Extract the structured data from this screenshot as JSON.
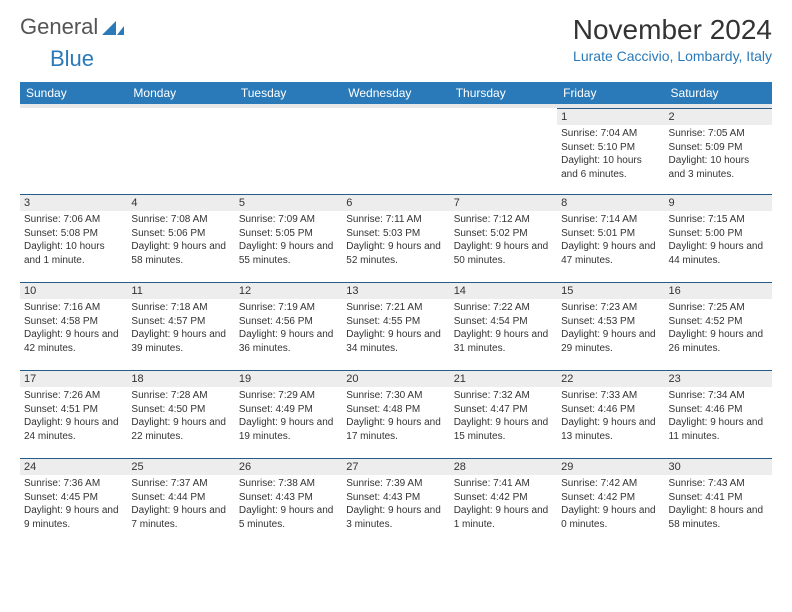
{
  "logo": {
    "text1": "General",
    "text2": "Blue"
  },
  "title": "November 2024",
  "location": "Lurate Caccivio, Lombardy, Italy",
  "header_bg": "#2a7ab9",
  "daynum_bg": "#ededed",
  "day_border": "#2a5a8a",
  "text_color": "#333333",
  "accent_color": "#2a7ab9",
  "days_of_week": [
    "Sunday",
    "Monday",
    "Tuesday",
    "Wednesday",
    "Thursday",
    "Friday",
    "Saturday"
  ],
  "weeks": [
    [
      null,
      null,
      null,
      null,
      null,
      {
        "n": "1",
        "sunrise": "Sunrise: 7:04 AM",
        "sunset": "Sunset: 5:10 PM",
        "daylight": "Daylight: 10 hours and 6 minutes."
      },
      {
        "n": "2",
        "sunrise": "Sunrise: 7:05 AM",
        "sunset": "Sunset: 5:09 PM",
        "daylight": "Daylight: 10 hours and 3 minutes."
      }
    ],
    [
      {
        "n": "3",
        "sunrise": "Sunrise: 7:06 AM",
        "sunset": "Sunset: 5:08 PM",
        "daylight": "Daylight: 10 hours and 1 minute."
      },
      {
        "n": "4",
        "sunrise": "Sunrise: 7:08 AM",
        "sunset": "Sunset: 5:06 PM",
        "daylight": "Daylight: 9 hours and 58 minutes."
      },
      {
        "n": "5",
        "sunrise": "Sunrise: 7:09 AM",
        "sunset": "Sunset: 5:05 PM",
        "daylight": "Daylight: 9 hours and 55 minutes."
      },
      {
        "n": "6",
        "sunrise": "Sunrise: 7:11 AM",
        "sunset": "Sunset: 5:03 PM",
        "daylight": "Daylight: 9 hours and 52 minutes."
      },
      {
        "n": "7",
        "sunrise": "Sunrise: 7:12 AM",
        "sunset": "Sunset: 5:02 PM",
        "daylight": "Daylight: 9 hours and 50 minutes."
      },
      {
        "n": "8",
        "sunrise": "Sunrise: 7:14 AM",
        "sunset": "Sunset: 5:01 PM",
        "daylight": "Daylight: 9 hours and 47 minutes."
      },
      {
        "n": "9",
        "sunrise": "Sunrise: 7:15 AM",
        "sunset": "Sunset: 5:00 PM",
        "daylight": "Daylight: 9 hours and 44 minutes."
      }
    ],
    [
      {
        "n": "10",
        "sunrise": "Sunrise: 7:16 AM",
        "sunset": "Sunset: 4:58 PM",
        "daylight": "Daylight: 9 hours and 42 minutes."
      },
      {
        "n": "11",
        "sunrise": "Sunrise: 7:18 AM",
        "sunset": "Sunset: 4:57 PM",
        "daylight": "Daylight: 9 hours and 39 minutes."
      },
      {
        "n": "12",
        "sunrise": "Sunrise: 7:19 AM",
        "sunset": "Sunset: 4:56 PM",
        "daylight": "Daylight: 9 hours and 36 minutes."
      },
      {
        "n": "13",
        "sunrise": "Sunrise: 7:21 AM",
        "sunset": "Sunset: 4:55 PM",
        "daylight": "Daylight: 9 hours and 34 minutes."
      },
      {
        "n": "14",
        "sunrise": "Sunrise: 7:22 AM",
        "sunset": "Sunset: 4:54 PM",
        "daylight": "Daylight: 9 hours and 31 minutes."
      },
      {
        "n": "15",
        "sunrise": "Sunrise: 7:23 AM",
        "sunset": "Sunset: 4:53 PM",
        "daylight": "Daylight: 9 hours and 29 minutes."
      },
      {
        "n": "16",
        "sunrise": "Sunrise: 7:25 AM",
        "sunset": "Sunset: 4:52 PM",
        "daylight": "Daylight: 9 hours and 26 minutes."
      }
    ],
    [
      {
        "n": "17",
        "sunrise": "Sunrise: 7:26 AM",
        "sunset": "Sunset: 4:51 PM",
        "daylight": "Daylight: 9 hours and 24 minutes."
      },
      {
        "n": "18",
        "sunrise": "Sunrise: 7:28 AM",
        "sunset": "Sunset: 4:50 PM",
        "daylight": "Daylight: 9 hours and 22 minutes."
      },
      {
        "n": "19",
        "sunrise": "Sunrise: 7:29 AM",
        "sunset": "Sunset: 4:49 PM",
        "daylight": "Daylight: 9 hours and 19 minutes."
      },
      {
        "n": "20",
        "sunrise": "Sunrise: 7:30 AM",
        "sunset": "Sunset: 4:48 PM",
        "daylight": "Daylight: 9 hours and 17 minutes."
      },
      {
        "n": "21",
        "sunrise": "Sunrise: 7:32 AM",
        "sunset": "Sunset: 4:47 PM",
        "daylight": "Daylight: 9 hours and 15 minutes."
      },
      {
        "n": "22",
        "sunrise": "Sunrise: 7:33 AM",
        "sunset": "Sunset: 4:46 PM",
        "daylight": "Daylight: 9 hours and 13 minutes."
      },
      {
        "n": "23",
        "sunrise": "Sunrise: 7:34 AM",
        "sunset": "Sunset: 4:46 PM",
        "daylight": "Daylight: 9 hours and 11 minutes."
      }
    ],
    [
      {
        "n": "24",
        "sunrise": "Sunrise: 7:36 AM",
        "sunset": "Sunset: 4:45 PM",
        "daylight": "Daylight: 9 hours and 9 minutes."
      },
      {
        "n": "25",
        "sunrise": "Sunrise: 7:37 AM",
        "sunset": "Sunset: 4:44 PM",
        "daylight": "Daylight: 9 hours and 7 minutes."
      },
      {
        "n": "26",
        "sunrise": "Sunrise: 7:38 AM",
        "sunset": "Sunset: 4:43 PM",
        "daylight": "Daylight: 9 hours and 5 minutes."
      },
      {
        "n": "27",
        "sunrise": "Sunrise: 7:39 AM",
        "sunset": "Sunset: 4:43 PM",
        "daylight": "Daylight: 9 hours and 3 minutes."
      },
      {
        "n": "28",
        "sunrise": "Sunrise: 7:41 AM",
        "sunset": "Sunset: 4:42 PM",
        "daylight": "Daylight: 9 hours and 1 minute."
      },
      {
        "n": "29",
        "sunrise": "Sunrise: 7:42 AM",
        "sunset": "Sunset: 4:42 PM",
        "daylight": "Daylight: 9 hours and 0 minutes."
      },
      {
        "n": "30",
        "sunrise": "Sunrise: 7:43 AM",
        "sunset": "Sunset: 4:41 PM",
        "daylight": "Daylight: 8 hours and 58 minutes."
      }
    ]
  ]
}
